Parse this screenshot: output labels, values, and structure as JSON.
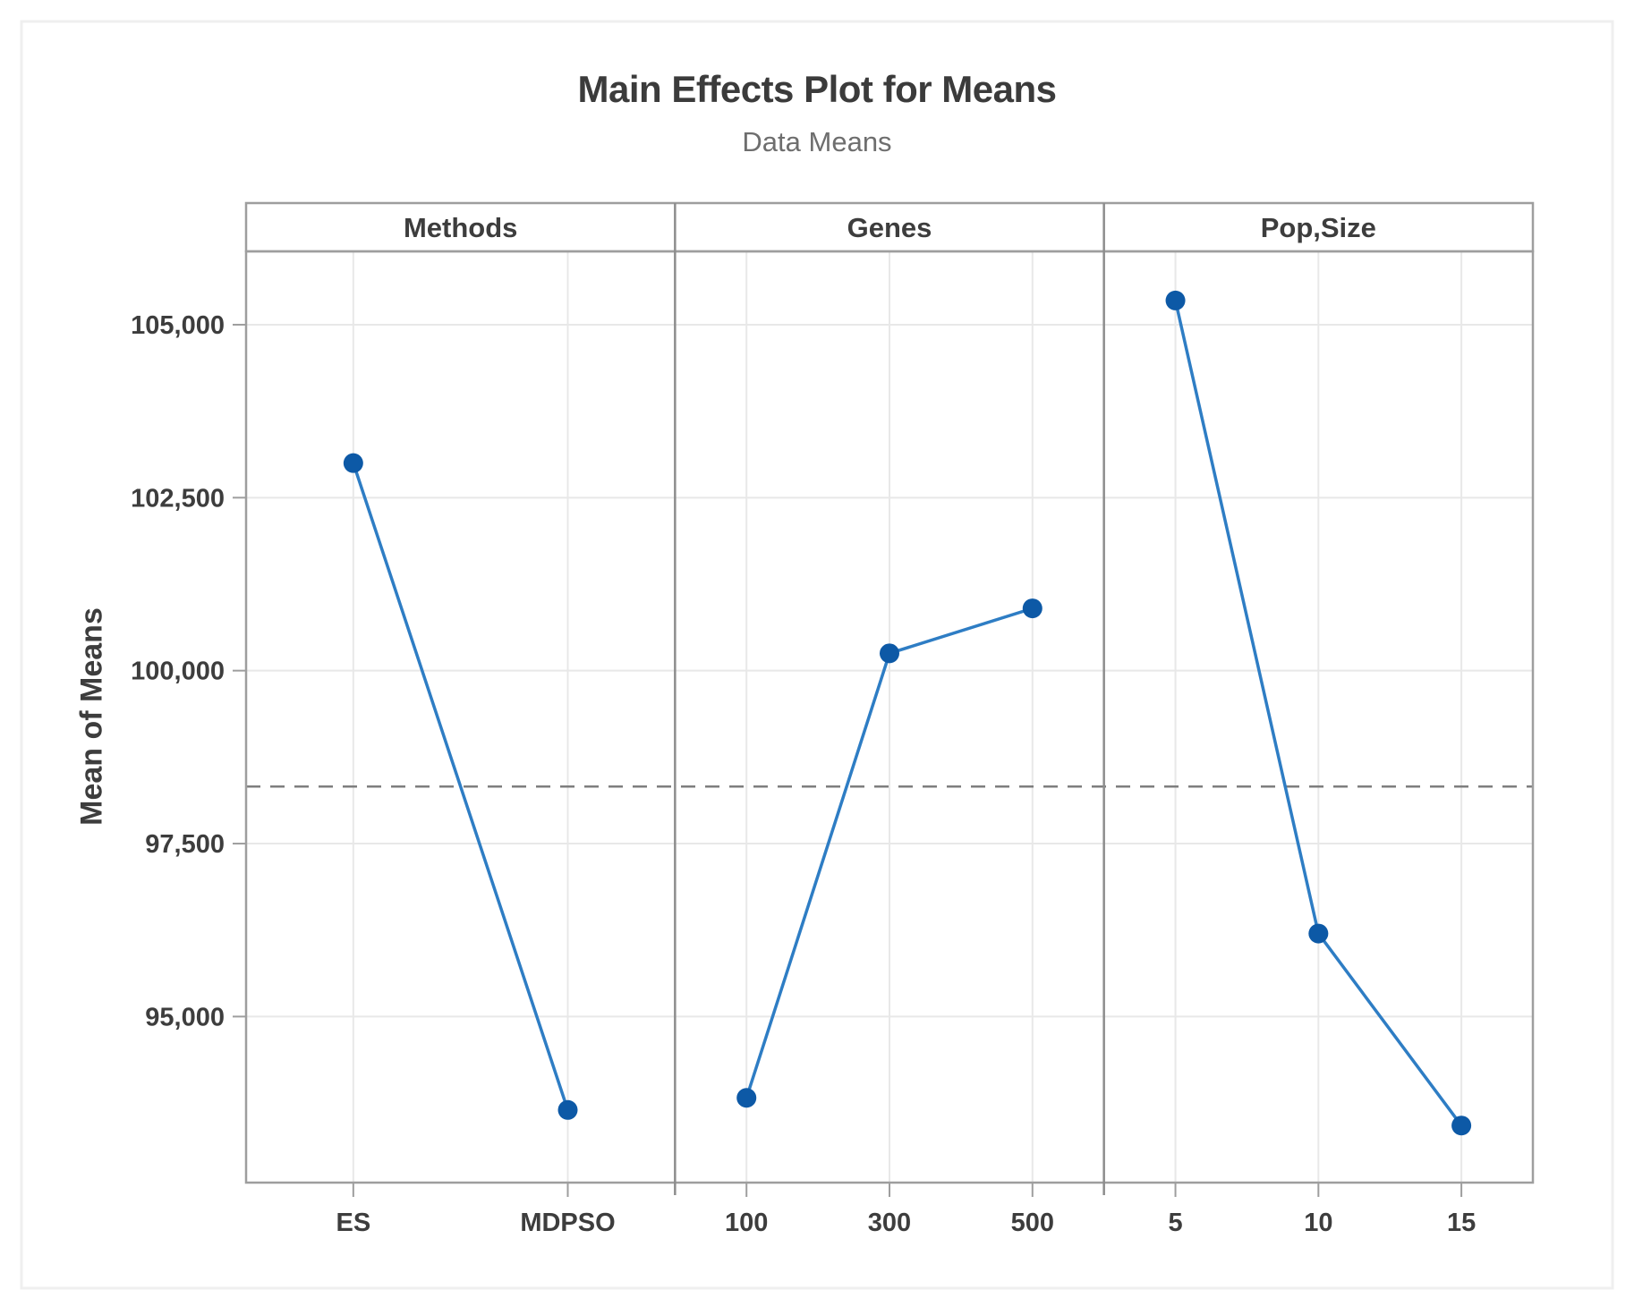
{
  "chart_data": {
    "type": "line",
    "title": "Main Effects Plot for Means",
    "subtitle": "Data Means",
    "ylabel": "Mean of Means",
    "legend": "none",
    "grid": true,
    "ylim": [
      92600,
      106060
    ],
    "yticks": [
      {
        "value": 95000,
        "label": "95,000"
      },
      {
        "value": 97500,
        "label": "97,500"
      },
      {
        "value": 100000,
        "label": "100,000"
      },
      {
        "value": 102500,
        "label": "102,500"
      },
      {
        "value": 105000,
        "label": "105,000"
      }
    ],
    "overall_mean": 98325,
    "reference_line_style": "dashed",
    "panels": [
      {
        "label": "Methods",
        "categories": [
          "ES",
          "MDPSO"
        ],
        "values": [
          103000,
          93650
        ]
      },
      {
        "label": "Genes",
        "categories": [
          "100",
          "300",
          "500"
        ],
        "values": [
          93825,
          100250,
          100900
        ]
      },
      {
        "label": "Pop,Size",
        "categories": [
          "5",
          "10",
          "15"
        ],
        "values": [
          105350,
          96200,
          93425
        ]
      }
    ]
  },
  "style": {
    "line_color": "#2e7dc4",
    "marker_color": "#0d59a6",
    "border_color": "#9e9e9e",
    "separator_color": "#8d8d8d",
    "gridline_color": "#e8e8e8",
    "mean_line_color": "#7e7e7e",
    "figure_border_color": "#efefef",
    "text_color": "#3d3d3d",
    "subtitle_color": "#6e6e6e"
  }
}
